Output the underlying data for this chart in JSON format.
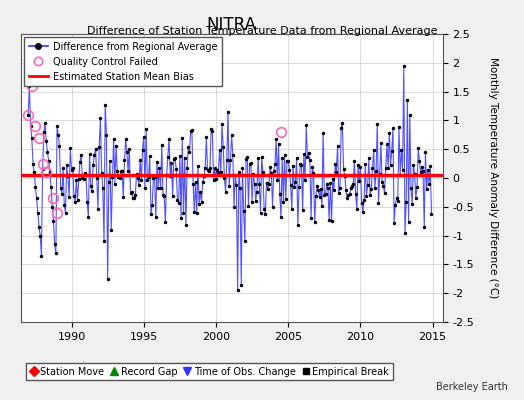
{
  "title": "NITRA",
  "subtitle": "Difference of Station Temperature Data from Regional Average",
  "ylabel": "Monthly Temperature Anomaly Difference (°C)",
  "xlabel_years": [
    1990,
    1995,
    2000,
    2005,
    2010,
    2015
  ],
  "ylim": [
    -2.5,
    2.5
  ],
  "xlim_start": 1986.5,
  "xlim_end": 2015.7,
  "bias_value": 0.05,
  "line_color": "#3333ff",
  "bias_color": "#ff0000",
  "qc_color": "#ff69b4",
  "dot_color": "#000000",
  "grid_color": "#cccccc",
  "background_color": "#f0f0f0",
  "plot_bg_color": "#ffffff",
  "legend1_labels": [
    "Difference from Regional Average",
    "Quality Control Failed",
    "Estimated Station Mean Bias"
  ],
  "legend2_labels": [
    "Station Move",
    "Record Gap",
    "Time of Obs. Change",
    "Empirical Break"
  ],
  "legend2_colors": [
    "#ff0000",
    "#008800",
    "#3333ff",
    "#000000"
  ],
  "legend2_markers": [
    "D",
    "^",
    "v",
    "s"
  ],
  "berkeley_earth_text": "Berkeley Earth",
  "yticks": [
    -2.0,
    -1.5,
    -1.0,
    -0.5,
    0.0,
    0.5,
    1.0,
    1.5,
    2.0
  ],
  "ytick_labels": [
    "-2",
    "-1.5",
    "-1",
    "-0.5",
    "0",
    "0.5",
    "1",
    "1.5",
    "2"
  ]
}
